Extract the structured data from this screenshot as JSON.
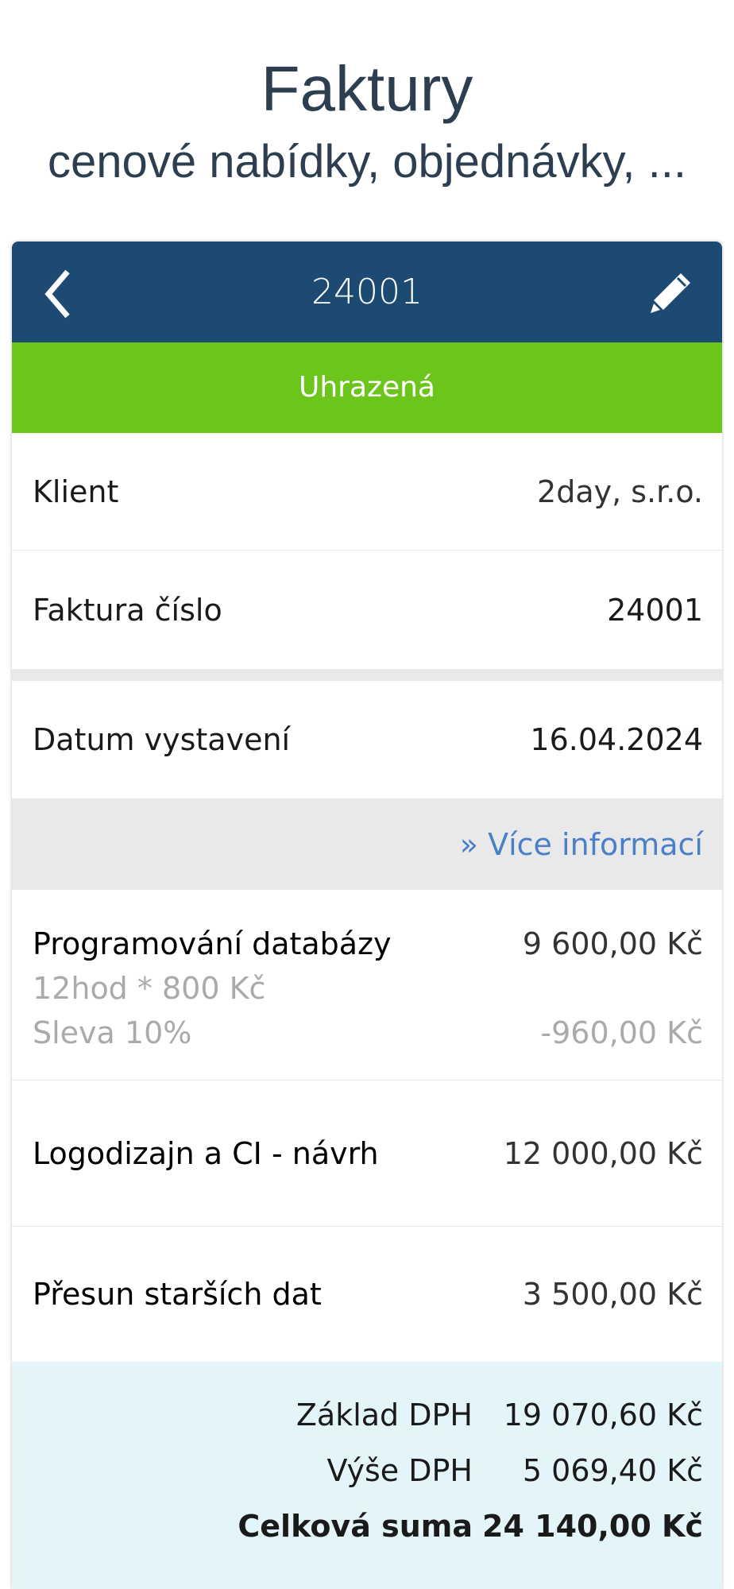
{
  "hero": {
    "title": "Faktury",
    "subtitle": "cenové nabídky, objednávky, ..."
  },
  "header": {
    "number": "24001",
    "back_icon": "chevron-left-icon",
    "edit_icon": "pencil-icon"
  },
  "status": {
    "label": "Uhrazená",
    "color": "#6cc51b"
  },
  "details": [
    {
      "label": "Klient",
      "value": "2day, s.r.o."
    },
    {
      "label": "Faktura číslo",
      "value": "24001"
    },
    {
      "label": "Datum vystavení",
      "value": "16.04.2024"
    }
  ],
  "more_link": "» Více informací",
  "items": [
    {
      "name": "Programování databázy",
      "price": "9 600,00 Kč",
      "detail": "12hod * 800 Kč",
      "discount_label": "Sleva 10%",
      "discount_value": "-960,00 Kč"
    },
    {
      "name": "Logodizajn a CI - návrh",
      "price": "12 000,00 Kč"
    },
    {
      "name": "Přesun starších dat",
      "price": "3 500,00 Kč"
    }
  ],
  "summary": [
    {
      "label": "Základ DPH",
      "value": "19 070,60 Kč"
    },
    {
      "label": "Výše DPH",
      "value": "5 069,40 Kč"
    },
    {
      "label": "Celková suma",
      "value": "24 140,00 Kč"
    }
  ],
  "colors": {
    "header": "#1c4a72",
    "link": "#4a80c8",
    "summary_bg": "#e3f5f8"
  }
}
